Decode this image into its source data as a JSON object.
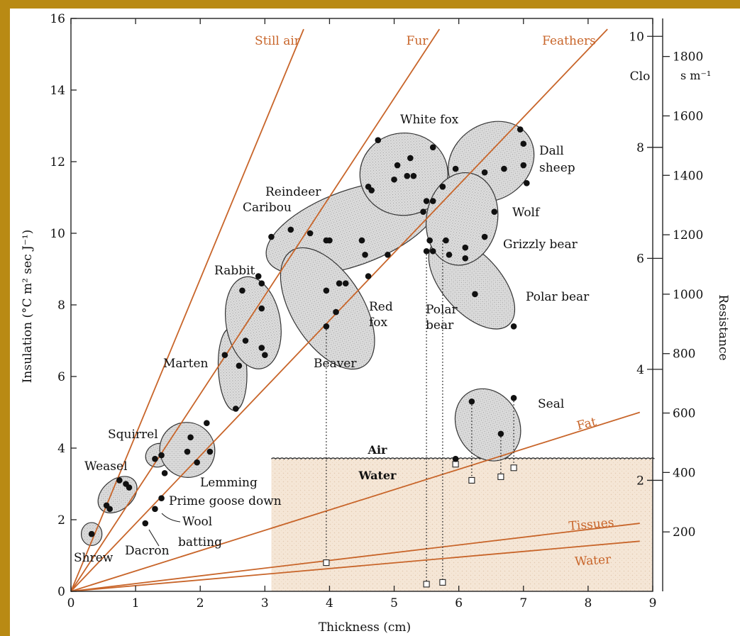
{
  "chart_data": {
    "type": "scatter",
    "title": "",
    "xlabel": "Thickness (cm)",
    "ylabel": "Insulation (°C m² sec J⁻¹)",
    "right_axis_clo_label": "Clo",
    "right_axis_resistance_label": "Resistance",
    "right_axis_resistance_unit": "s m⁻¹",
    "xlim": [
      0,
      9
    ],
    "ylim": [
      0,
      16
    ],
    "x_ticks": [
      "0",
      "1",
      "2",
      "3",
      "4",
      "5",
      "6",
      "7",
      "8",
      "9"
    ],
    "y_ticks": [
      "0",
      "2",
      "4",
      "6",
      "8",
      "10",
      "12",
      "14",
      "16"
    ],
    "clo_ticks": [
      "2",
      "4",
      "6",
      "8",
      "10"
    ],
    "resistance_ticks": [
      "200",
      "400",
      "600",
      "800",
      "1000",
      "1200",
      "1400",
      "1600",
      "1800"
    ],
    "grid": false,
    "line_color": "#c8652a",
    "reference_lines": [
      {
        "name": "Still air",
        "x_end": 3.6,
        "y_end": 15.7
      },
      {
        "name": "Fur",
        "x_end": 5.7,
        "y_end": 15.7
      },
      {
        "name": "Feathers",
        "x_end": 8.3,
        "y_end": 15.7
      },
      {
        "name": "Fat",
        "x_end": 8.8,
        "y_end": 5.0
      },
      {
        "name": "Tissues",
        "x_end": 8.8,
        "y_end": 1.9
      },
      {
        "name": "Water",
        "x_end": 8.8,
        "y_end": 1.4
      }
    ],
    "region_labels": {
      "air": "Air",
      "water": "Water"
    },
    "water_surface_y": 3.7,
    "groups": [
      {
        "name": "Shrew",
        "points": [
          [
            0.32,
            1.6
          ]
        ]
      },
      {
        "name": "Weasel",
        "points": [
          [
            0.55,
            2.4
          ],
          [
            0.6,
            2.3
          ],
          [
            0.75,
            3.1
          ],
          [
            0.85,
            3.0
          ],
          [
            0.9,
            2.9
          ]
        ]
      },
      {
        "name": "Squirrel",
        "points": [
          [
            1.3,
            3.7
          ],
          [
            1.4,
            3.8
          ]
        ]
      },
      {
        "name": "Lemming",
        "points": [
          [
            1.45,
            3.3
          ],
          [
            1.8,
            3.9
          ],
          [
            1.85,
            4.3
          ],
          [
            1.95,
            3.6
          ],
          [
            2.1,
            4.7
          ],
          [
            2.15,
            3.9
          ]
        ]
      },
      {
        "name": "Marten",
        "points": [
          [
            2.38,
            6.6
          ],
          [
            2.55,
            5.1
          ],
          [
            2.6,
            6.3
          ]
        ]
      },
      {
        "name": "Rabbit",
        "points": [
          [
            2.65,
            8.4
          ],
          [
            2.7,
            7.0
          ],
          [
            2.9,
            8.8
          ],
          [
            2.95,
            8.6
          ],
          [
            2.95,
            7.9
          ],
          [
            2.95,
            6.8
          ],
          [
            3.0,
            6.6
          ]
        ]
      },
      {
        "name": "Reindeer Caribou",
        "points": [
          [
            3.1,
            9.9
          ],
          [
            3.4,
            10.1
          ],
          [
            3.7,
            10.0
          ],
          [
            3.95,
            9.8
          ],
          [
            4.0,
            9.8
          ],
          [
            4.5,
            9.8
          ],
          [
            4.9,
            9.4
          ]
        ]
      },
      {
        "name": "Red fox",
        "points": [
          [
            3.95,
            8.4
          ],
          [
            4.15,
            8.6
          ],
          [
            4.25,
            8.6
          ],
          [
            4.1,
            7.8
          ],
          [
            3.95,
            7.4
          ],
          [
            4.6,
            8.8
          ],
          [
            4.55,
            9.4
          ]
        ]
      },
      {
        "name": "White fox",
        "points": [
          [
            4.6,
            11.3
          ],
          [
            4.65,
            11.2
          ],
          [
            4.75,
            12.6
          ],
          [
            5.0,
            11.5
          ],
          [
            5.05,
            11.9
          ],
          [
            5.25,
            12.1
          ],
          [
            5.2,
            11.6
          ],
          [
            5.3,
            11.6
          ],
          [
            5.6,
            12.4
          ],
          [
            5.75,
            11.3
          ],
          [
            5.6,
            10.9
          ],
          [
            5.5,
            10.9
          ],
          [
            5.45,
            10.6
          ]
        ]
      },
      {
        "name": "Dall sheep",
        "points": [
          [
            5.95,
            11.8
          ],
          [
            6.4,
            11.7
          ],
          [
            6.7,
            11.8
          ],
          [
            6.95,
            12.9
          ],
          [
            7.0,
            12.5
          ],
          [
            7.0,
            11.9
          ],
          [
            7.05,
            11.4
          ]
        ]
      },
      {
        "name": "Wolf",
        "points": [
          [
            6.55,
            10.6
          ]
        ]
      },
      {
        "name": "Grizzly bear",
        "points": [
          [
            5.55,
            9.8
          ],
          [
            5.8,
            9.8
          ],
          [
            5.85,
            9.4
          ],
          [
            6.1,
            9.3
          ],
          [
            6.4,
            9.9
          ],
          [
            5.6,
            9.5
          ]
        ]
      },
      {
        "name": "Polar bear",
        "points": [
          [
            5.5,
            9.5
          ],
          [
            6.1,
            9.6
          ],
          [
            6.25,
            8.3
          ],
          [
            6.85,
            7.4
          ]
        ]
      },
      {
        "name": "Seal",
        "points": [
          [
            5.95,
            3.7
          ],
          [
            6.2,
            5.3
          ],
          [
            6.65,
            4.4
          ],
          [
            6.85,
            5.4
          ]
        ]
      },
      {
        "name": "Prime goose down",
        "points": [
          [
            1.4,
            2.6
          ]
        ]
      },
      {
        "name": "Wool batting",
        "points": [
          [
            1.3,
            2.3
          ]
        ]
      },
      {
        "name": "Dacron",
        "points": [
          [
            1.15,
            1.9
          ]
        ]
      }
    ],
    "group_labels": {
      "shrew": "Shrew",
      "weasel": "Weasel",
      "squirrel": "Squirrel",
      "lemming": "Lemming",
      "marten": "Marten",
      "rabbit": "Rabbit",
      "reindeer": "Reindeer",
      "caribou": "Caribou",
      "red_fox_1": "Red",
      "red_fox_2": "fox",
      "beaver": "Beaver",
      "white_fox": "White fox",
      "dall_sheep_1": "Dall",
      "dall_sheep_2": "sheep",
      "wolf": "Wolf",
      "grizzly_bear": "Grizzly bear",
      "polar_bear": "Polar bear",
      "polar_bear_water_1": "Polar",
      "polar_bear_water_2": "bear",
      "seal": "Seal",
      "prime_goose_down": "Prime goose down",
      "wool_batting_1": "Wool",
      "wool_batting_2": "batting",
      "dacron": "Dacron"
    },
    "in_water_points": [
      {
        "name": "Beaver",
        "air_x": 3.95,
        "air_y": 7.4,
        "water_y": 0.8
      },
      {
        "name": "Polar bear (a)",
        "air_x": 5.5,
        "air_y": 9.5,
        "water_y": 0.2
      },
      {
        "name": "Polar bear (b)",
        "air_x": 5.75,
        "air_y": 9.8,
        "water_y": 0.25
      },
      {
        "name": "Seal (a)",
        "air_x": 5.95,
        "air_y": 3.7,
        "water_y": 3.55
      },
      {
        "name": "Seal (b)",
        "air_x": 6.2,
        "air_y": 5.3,
        "water_y": 3.1
      },
      {
        "name": "Seal (c)",
        "air_x": 6.65,
        "air_y": 4.4,
        "water_y": 3.2
      },
      {
        "name": "Seal (d)",
        "air_x": 6.85,
        "air_y": 5.4,
        "water_y": 3.45
      }
    ]
  }
}
